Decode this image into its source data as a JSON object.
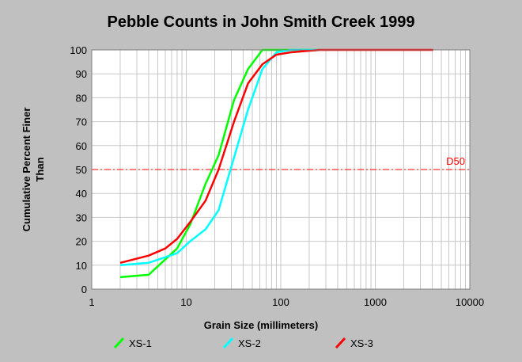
{
  "chart_data": {
    "type": "line",
    "title": "Pebble Counts in John Smith Creek 1999",
    "xlabel": "Grain Size (millimeters)",
    "ylabel_lines": [
      "Cumulative Percent Finer",
      "Than"
    ],
    "x_scale": "log",
    "xlim": [
      1,
      10000
    ],
    "ylim": [
      0,
      100
    ],
    "x_ticks": [
      1,
      10,
      100,
      1000,
      10000
    ],
    "x_tick_labels": [
      "1",
      "10",
      "100",
      "1000",
      "10000"
    ],
    "y_ticks": [
      0,
      10,
      20,
      30,
      40,
      50,
      60,
      70,
      80,
      90,
      100
    ],
    "y_tick_labels": [
      "0",
      "10",
      "20",
      "30",
      "40",
      "50",
      "60",
      "70",
      "80",
      "90",
      "100"
    ],
    "grid": true,
    "legend_position": "bottom",
    "reference_line": {
      "y": 50,
      "label": "D50",
      "color": "#ff0000"
    },
    "series": [
      {
        "name": "XS-1",
        "color": "#00ff00",
        "points": [
          [
            2,
            5
          ],
          [
            4,
            6
          ],
          [
            8,
            17
          ],
          [
            11,
            27
          ],
          [
            16,
            44
          ],
          [
            22,
            56
          ],
          [
            32,
            79
          ],
          [
            45,
            92
          ],
          [
            64,
            100
          ],
          [
            90,
            100
          ],
          [
            128,
            100
          ],
          [
            256,
            100
          ]
        ]
      },
      {
        "name": "XS-2",
        "color": "#00ffff",
        "points": [
          [
            2,
            10
          ],
          [
            4,
            11
          ],
          [
            8,
            15
          ],
          [
            11,
            20
          ],
          [
            16,
            25
          ],
          [
            22,
            33
          ],
          [
            32,
            55
          ],
          [
            45,
            75
          ],
          [
            64,
            92
          ],
          [
            90,
            99
          ],
          [
            128,
            100
          ],
          [
            256,
            100
          ]
        ]
      },
      {
        "name": "XS-3",
        "color": "#ff0000",
        "points": [
          [
            2,
            11
          ],
          [
            4,
            14
          ],
          [
            6,
            17
          ],
          [
            8,
            21
          ],
          [
            11,
            28
          ],
          [
            16,
            37
          ],
          [
            22,
            50
          ],
          [
            32,
            70
          ],
          [
            45,
            86
          ],
          [
            64,
            94
          ],
          [
            90,
            98
          ],
          [
            128,
            99
          ],
          [
            256,
            100
          ],
          [
            512,
            100
          ],
          [
            1024,
            100
          ],
          [
            2048,
            100
          ],
          [
            4096,
            100
          ]
        ]
      }
    ]
  }
}
